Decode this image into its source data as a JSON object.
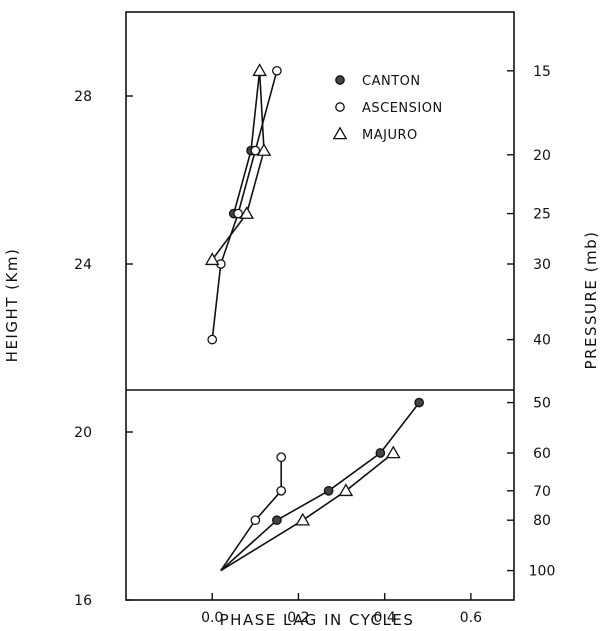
{
  "chart_data": {
    "type": "line",
    "xlabel": "PHASE LAG IN CYCLES",
    "ylabel": "HEIGHT (Km)",
    "y2label": "PRESSURE (mb)",
    "xlim": [
      -0.2,
      0.7
    ],
    "ylim": [
      16,
      30
    ],
    "x_ticks": [
      {
        "value": 0.0,
        "label": "0.0"
      },
      {
        "value": 0.2,
        "label": "0.2"
      },
      {
        "value": 0.4,
        "label": "0.4"
      },
      {
        "value": 0.6,
        "label": "0.6"
      }
    ],
    "y_ticks": [
      {
        "value": 16,
        "label": "16"
      },
      {
        "value": 20,
        "label": "20"
      },
      {
        "value": 24,
        "label": "24"
      },
      {
        "value": 28,
        "label": "28"
      }
    ],
    "y2_ticks": [
      {
        "label": "15",
        "height": 28.6
      },
      {
        "label": "20",
        "height": 26.6
      },
      {
        "label": "25",
        "height": 25.2
      },
      {
        "label": "30",
        "height": 24.0
      },
      {
        "label": "40",
        "height": 22.2
      },
      {
        "label": "50",
        "height": 20.7
      },
      {
        "label": "60",
        "height": 19.5
      },
      {
        "label": "70",
        "height": 18.6
      },
      {
        "label": "80",
        "height": 17.9
      },
      {
        "label": "100",
        "height": 16.7
      }
    ],
    "panel_divider_height": 21.0,
    "legend": {
      "placement": "top-right"
    },
    "series": [
      {
        "name": "CANTON",
        "marker": "filled-circle",
        "upper": [
          [
            0.09,
            26.7
          ],
          [
            0.05,
            25.2
          ]
        ],
        "lower": [
          [
            0.48,
            20.7
          ],
          [
            0.39,
            19.5
          ],
          [
            0.27,
            18.6
          ],
          [
            0.15,
            17.9
          ],
          [
            0.02,
            16.7
          ]
        ]
      },
      {
        "name": "ASCENSION",
        "marker": "open-circle",
        "upper": [
          [
            0.15,
            28.6
          ],
          [
            0.1,
            26.7
          ],
          [
            0.06,
            25.2
          ],
          [
            0.02,
            24.0
          ],
          [
            0.0,
            22.2
          ]
        ],
        "lower": [
          [
            0.16,
            19.4
          ],
          [
            0.16,
            18.6
          ],
          [
            0.1,
            17.9
          ],
          [
            0.02,
            16.7
          ]
        ]
      },
      {
        "name": "MAJURO",
        "marker": "triangle",
        "upper": [
          [
            0.11,
            28.6
          ],
          [
            0.12,
            26.7
          ],
          [
            0.08,
            25.2
          ],
          [
            0.0,
            24.1
          ]
        ],
        "lower": [
          [
            0.42,
            19.5
          ],
          [
            0.31,
            18.6
          ],
          [
            0.21,
            17.9
          ],
          [
            0.02,
            16.7
          ]
        ]
      }
    ],
    "canton_upper_joins_majuro_top": [
      0.11,
      28.6
    ]
  }
}
